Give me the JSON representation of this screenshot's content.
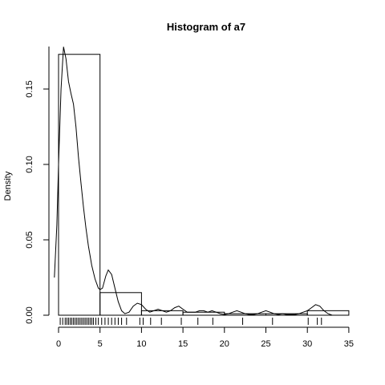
{
  "chart_data": {
    "type": "histogram",
    "title": "Histogram of  a7",
    "xlabel": "",
    "ylabel": "Density",
    "xlim": [
      0,
      35
    ],
    "ylim": [
      0,
      0.175
    ],
    "x_ticks": [
      0,
      5,
      10,
      15,
      20,
      25,
      30,
      35
    ],
    "y_ticks": [
      0.0,
      0.05,
      0.1,
      0.15
    ],
    "y_tick_labels": [
      "0.00",
      "0.05",
      "0.10",
      "0.15"
    ],
    "bins": [
      {
        "start": 0,
        "end": 5,
        "density": 0.173
      },
      {
        "start": 5,
        "end": 10,
        "density": 0.015
      },
      {
        "start": 10,
        "end": 15,
        "density": 0.003
      },
      {
        "start": 15,
        "end": 20,
        "density": 0.002
      },
      {
        "start": 20,
        "end": 25,
        "density": 0.001
      },
      {
        "start": 25,
        "end": 30,
        "density": 0.001
      },
      {
        "start": 30,
        "end": 35,
        "density": 0.003
      }
    ],
    "density_curve": {
      "x": [
        -0.5,
        -0.2,
        0.0,
        0.3,
        0.6,
        0.9,
        1.2,
        1.5,
        1.8,
        2.1,
        2.4,
        2.7,
        3.0,
        3.3,
        3.6,
        4.0,
        4.4,
        4.8,
        5.0,
        5.3,
        5.7,
        6.0,
        6.4,
        6.8,
        7.2,
        7.6,
        8.0,
        8.5,
        9.0,
        9.5,
        10.0,
        10.5,
        11.0,
        11.5,
        12.0,
        12.5,
        13.0,
        13.5,
        14.0,
        14.5,
        15.0,
        15.5,
        16.0,
        16.5,
        17.0,
        17.5,
        18.0,
        18.5,
        19.0,
        19.5,
        20.0,
        20.5,
        21.0,
        21.5,
        22.0,
        22.5,
        23.0,
        23.5,
        24.0,
        24.5,
        25.0,
        25.5,
        26.0,
        26.5,
        27.0,
        27.5,
        28.0,
        28.5,
        29.0,
        29.5,
        30.0,
        30.5,
        31.0,
        31.5,
        32.0,
        32.5,
        33.0
      ],
      "y": [
        0.025,
        0.06,
        0.1,
        0.15,
        0.178,
        0.17,
        0.155,
        0.147,
        0.14,
        0.125,
        0.105,
        0.088,
        0.072,
        0.058,
        0.046,
        0.033,
        0.024,
        0.018,
        0.017,
        0.018,
        0.026,
        0.03,
        0.027,
        0.018,
        0.009,
        0.003,
        0.001,
        0.002,
        0.006,
        0.008,
        0.007,
        0.004,
        0.002,
        0.003,
        0.004,
        0.003,
        0.002,
        0.003,
        0.005,
        0.006,
        0.004,
        0.002,
        0.002,
        0.002,
        0.003,
        0.003,
        0.002,
        0.003,
        0.002,
        0.001,
        0.0005,
        0.001,
        0.002,
        0.003,
        0.002,
        0.001,
        0.0005,
        0.0005,
        0.001,
        0.002,
        0.003,
        0.002,
        0.001,
        0.0005,
        0.001,
        0.0005,
        0.0005,
        0.0005,
        0.001,
        0.002,
        0.003,
        0.005,
        0.007,
        0.006,
        0.003,
        0.001,
        0.0
      ]
    },
    "rug": [
      0.2,
      0.5,
      0.8,
      1.0,
      1.2,
      1.4,
      1.6,
      1.8,
      2.0,
      2.2,
      2.4,
      2.6,
      2.8,
      3.0,
      3.2,
      3.4,
      3.6,
      3.8,
      4.0,
      4.2,
      4.5,
      4.8,
      5.2,
      5.6,
      6.0,
      6.4,
      6.8,
      7.2,
      7.6,
      8.2,
      9.8,
      10.2,
      11.1,
      12.4,
      14.8,
      16.8,
      18.6,
      22.2,
      25.8,
      30.1,
      31.2,
      31.7
    ]
  }
}
